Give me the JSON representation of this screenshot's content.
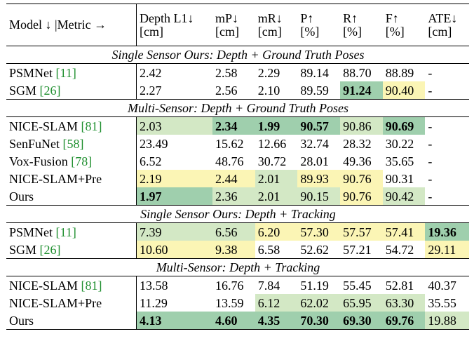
{
  "header": {
    "model_metric": "Model ↓ |Metric →",
    "cols": [
      {
        "name": "Depth L1↓",
        "unit": "[cm]"
      },
      {
        "name": "mP↓",
        "unit": "[cm]"
      },
      {
        "name": "mR↓",
        "unit": "[cm]"
      },
      {
        "name": "P↑",
        "unit": "[%]"
      },
      {
        "name": "R↑",
        "unit": "[%]"
      },
      {
        "name": "F↑",
        "unit": "[%]"
      },
      {
        "name": "ATE↓",
        "unit": "[cm]"
      }
    ]
  },
  "sections": [
    {
      "title": "Single Sensor Ours: Depth + Ground Truth Poses",
      "rows": [
        {
          "model": "PSMNet ",
          "ref": "[11]",
          "cells": [
            {
              "v": "2.42"
            },
            {
              "v": "2.58"
            },
            {
              "v": "2.29"
            },
            {
              "v": "89.14"
            },
            {
              "v": "88.70"
            },
            {
              "v": "88.89"
            },
            {
              "v": "-"
            }
          ]
        },
        {
          "model": "SGM ",
          "ref": "[26]",
          "cells": [
            {
              "v": "2.27"
            },
            {
              "v": "2.56"
            },
            {
              "v": "2.10"
            },
            {
              "v": "89.59"
            },
            {
              "v": "91.24",
              "hl": "best",
              "bold": true
            },
            {
              "v": "90.40",
              "hl": "third"
            },
            {
              "v": "-"
            }
          ]
        }
      ]
    },
    {
      "title": "Multi-Sensor: Depth + Ground Truth Poses",
      "rows": [
        {
          "model": "NICE-SLAM ",
          "ref": "[81]",
          "cells": [
            {
              "v": "2.03",
              "hl": "second"
            },
            {
              "v": "2.34",
              "hl": "best",
              "bold": true
            },
            {
              "v": "1.99",
              "hl": "best",
              "bold": true
            },
            {
              "v": "90.57",
              "hl": "best",
              "bold": true
            },
            {
              "v": "90.86",
              "hl": "second"
            },
            {
              "v": "90.69",
              "hl": "best",
              "bold": true
            },
            {
              "v": "-"
            }
          ]
        },
        {
          "model": "SenFuNet ",
          "ref": "[58]",
          "cells": [
            {
              "v": "23.49"
            },
            {
              "v": "15.62"
            },
            {
              "v": "12.66"
            },
            {
              "v": "32.74"
            },
            {
              "v": "28.32"
            },
            {
              "v": "30.22"
            },
            {
              "v": "-"
            }
          ]
        },
        {
          "model": "Vox-Fusion ",
          "ref": "[78]",
          "cells": [
            {
              "v": "6.52"
            },
            {
              "v": "48.76"
            },
            {
              "v": "30.72"
            },
            {
              "v": "28.01"
            },
            {
              "v": "49.36"
            },
            {
              "v": "35.65"
            },
            {
              "v": "-"
            }
          ]
        },
        {
          "model": "NICE-SLAM+Pre",
          "ref": "",
          "cells": [
            {
              "v": "2.19",
              "hl": "third"
            },
            {
              "v": "2.44",
              "hl": "third"
            },
            {
              "v": "2.01",
              "hl": "second"
            },
            {
              "v": "89.93",
              "hl": "third"
            },
            {
              "v": "90.76",
              "hl": "third"
            },
            {
              "v": "90.31"
            },
            {
              "v": "-"
            }
          ]
        },
        {
          "model": "Ours",
          "ref": "",
          "cells": [
            {
              "v": "1.97",
              "hl": "best",
              "bold": true
            },
            {
              "v": "2.36",
              "hl": "second"
            },
            {
              "v": "2.01",
              "hl": "second"
            },
            {
              "v": "90.15",
              "hl": "second"
            },
            {
              "v": "90.76",
              "hl": "third"
            },
            {
              "v": "90.42",
              "hl": "second"
            },
            {
              "v": "-"
            }
          ]
        }
      ]
    },
    {
      "title": "Single Sensor Ours: Depth + Tracking",
      "rows": [
        {
          "model": "PSMNet ",
          "ref": "[11]",
          "cells": [
            {
              "v": "7.39",
              "hl": "second"
            },
            {
              "v": "6.56",
              "hl": "second"
            },
            {
              "v": "6.20",
              "hl": "third"
            },
            {
              "v": "57.30",
              "hl": "third"
            },
            {
              "v": "57.57",
              "hl": "third"
            },
            {
              "v": "57.41",
              "hl": "third"
            },
            {
              "v": "19.36",
              "hl": "best",
              "bold": true
            }
          ]
        },
        {
          "model": "SGM ",
          "ref": "[26]",
          "cells": [
            {
              "v": "10.60",
              "hl": "third"
            },
            {
              "v": "9.38",
              "hl": "third"
            },
            {
              "v": "6.58"
            },
            {
              "v": "52.62"
            },
            {
              "v": "57.21"
            },
            {
              "v": "54.72"
            },
            {
              "v": "29.11",
              "hl": "third"
            }
          ]
        }
      ]
    },
    {
      "title": "Multi-Sensor: Depth + Tracking",
      "rows": [
        {
          "model": "NICE-SLAM ",
          "ref": "[81]",
          "cells": [
            {
              "v": "13.58"
            },
            {
              "v": "16.76"
            },
            {
              "v": "7.84"
            },
            {
              "v": "51.19"
            },
            {
              "v": "55.45"
            },
            {
              "v": "52.81"
            },
            {
              "v": "40.37"
            }
          ]
        },
        {
          "model": "NICE-SLAM+Pre",
          "ref": "",
          "cells": [
            {
              "v": "11.29"
            },
            {
              "v": "13.59"
            },
            {
              "v": "6.12",
              "hl": "second"
            },
            {
              "v": "62.02",
              "hl": "second"
            },
            {
              "v": "65.95",
              "hl": "second"
            },
            {
              "v": "63.30",
              "hl": "second"
            },
            {
              "v": "35.55"
            }
          ]
        },
        {
          "model": "Ours",
          "ref": "",
          "cells": [
            {
              "v": "4.13",
              "hl": "best",
              "bold": true
            },
            {
              "v": "4.60",
              "hl": "best",
              "bold": true
            },
            {
              "v": "4.35",
              "hl": "best",
              "bold": true
            },
            {
              "v": "70.30",
              "hl": "best",
              "bold": true
            },
            {
              "v": "69.30",
              "hl": "best",
              "bold": true
            },
            {
              "v": "69.76",
              "hl": "best",
              "bold": true
            },
            {
              "v": "19.88",
              "hl": "second"
            }
          ]
        }
      ]
    }
  ]
}
